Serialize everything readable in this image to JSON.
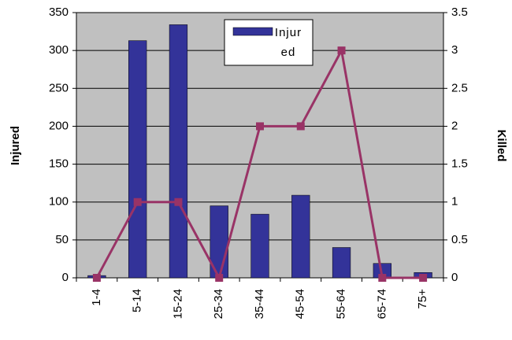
{
  "chart_data": {
    "type": "bar-line",
    "categories": [
      "1-4",
      "5-14",
      "15-24",
      "25-34",
      "35-44",
      "45-54",
      "55-64",
      "65-74",
      "75+"
    ],
    "series": [
      {
        "name": "Injured",
        "type": "bar",
        "color": "#333399",
        "values": [
          3,
          313,
          334,
          95,
          84,
          109,
          40,
          19,
          7
        ]
      },
      {
        "type": "line",
        "axis": "y2",
        "color": "#993366",
        "values": [
          0,
          1,
          1,
          0,
          2,
          2,
          3,
          0,
          0
        ]
      }
    ],
    "ylabel": "Injured",
    "y2label": "Killed",
    "ylim": [
      0,
      350
    ],
    "yticks": [
      0,
      50,
      100,
      150,
      200,
      250,
      300,
      350
    ],
    "y2lim": [
      0,
      3.5
    ],
    "y2ticks": [
      0,
      0.5,
      1,
      1.5,
      2,
      2.5,
      3,
      3.5
    ],
    "grid": true,
    "legend": "top"
  }
}
